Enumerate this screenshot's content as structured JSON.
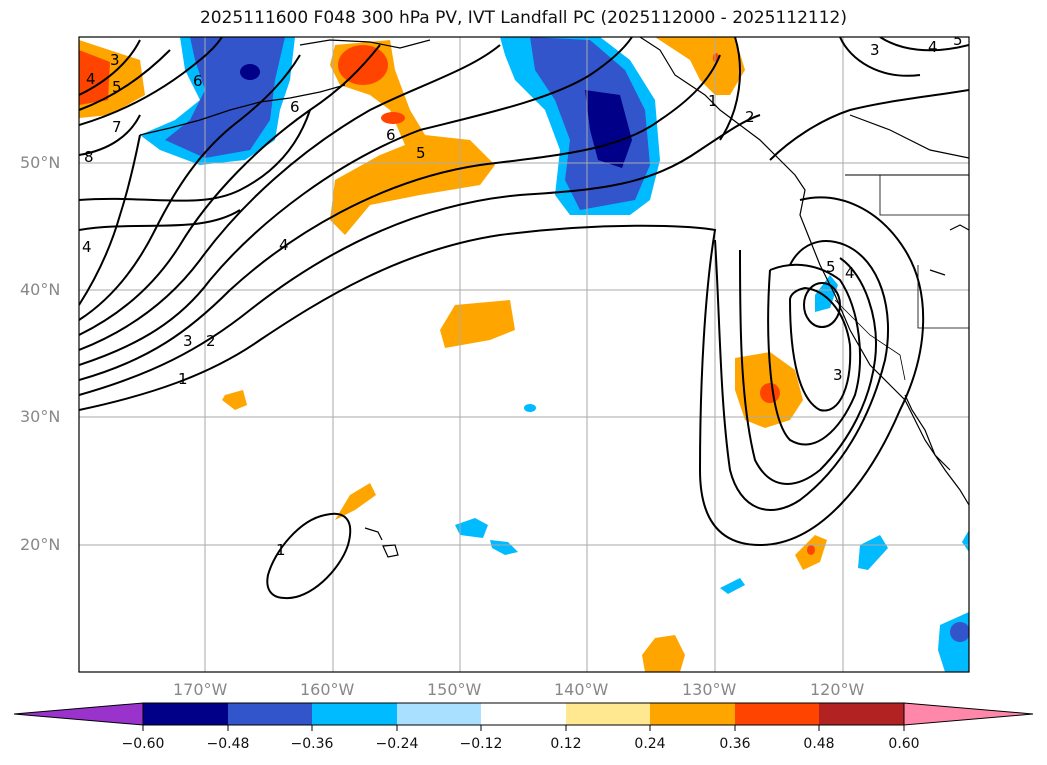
{
  "title": "2025111600 F048 300 hPa PV, IVT Landfall PC (2025112000 - 2025112112)",
  "axes": {
    "lat_labels": [
      "50°N",
      "40°N",
      "30°N",
      "20°N"
    ],
    "lon_labels": [
      "170°W",
      "160°W",
      "150°W",
      "140°W",
      "130°W",
      "120°W"
    ]
  },
  "colorbar": {
    "ticks": [
      "−0.60",
      "−0.48",
      "−0.36",
      "−0.24",
      "−0.12",
      "0.12",
      "0.24",
      "0.36",
      "0.48",
      "0.60"
    ],
    "colors": [
      "#9933cc",
      "#000088",
      "#3355cc",
      "#00bbff",
      "#aae0ff",
      "#ffffff",
      "#ffe890",
      "#ffa500",
      "#ff4400",
      "#b22222",
      "#ff88aa"
    ]
  },
  "contour_labels": [
    "1",
    "2",
    "3",
    "4",
    "5",
    "6",
    "7",
    "8",
    "3",
    "4",
    "5",
    "6",
    "2",
    "1",
    "1",
    "3",
    "4",
    "5",
    "6",
    "4",
    "3",
    "4",
    "5"
  ]
}
